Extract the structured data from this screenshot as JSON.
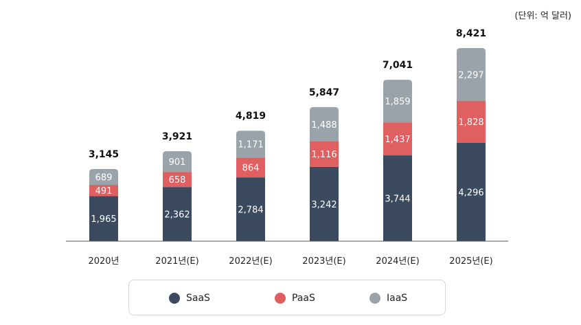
{
  "unit_label": "(단위: 억 달러)",
  "chart_data": {
    "type": "bar",
    "stacked": true,
    "categories": [
      "2020년",
      "2021년(E)",
      "2022년(E)",
      "2023년(E)",
      "2024년(E)",
      "2025년(E)"
    ],
    "series": [
      {
        "name": "SaaS",
        "values": [
          1965,
          2362,
          2784,
          3242,
          3744,
          4296
        ],
        "labels": [
          "1,965",
          "2,362",
          "2,784",
          "3,242",
          "3,744",
          "4,296"
        ]
      },
      {
        "name": "PaaS",
        "values": [
          491,
          658,
          864,
          1116,
          1437,
          1828
        ],
        "labels": [
          "491",
          "658",
          "864",
          "1,116",
          "1,437",
          "1,828"
        ]
      },
      {
        "name": "IaaS",
        "values": [
          689,
          901,
          1171,
          1488,
          1859,
          2297
        ],
        "labels": [
          "689",
          "901",
          "1,171",
          "1,488",
          "1,859",
          "2,297"
        ]
      }
    ],
    "totals": [
      3145,
      3921,
      4819,
      5847,
      7041,
      8421
    ],
    "total_labels": [
      "3,145",
      "3,921",
      "4,819",
      "5,847",
      "7,041",
      "8,421"
    ],
    "ylim": [
      0,
      8421
    ],
    "grid": false,
    "legend_position": "bottom",
    "title": "",
    "xlabel": "",
    "ylabel": ""
  },
  "legend": [
    {
      "label": "SaaS",
      "color": "#3b4a5e"
    },
    {
      "label": "PaaS",
      "color": "#e05f61"
    },
    {
      "label": "IaaS",
      "color": "#9aa3aa"
    }
  ],
  "colors": {
    "saas": "#3b4a5e",
    "paas": "#e05f61",
    "iaas": "#9aa3aa",
    "axis": "#555555"
  }
}
